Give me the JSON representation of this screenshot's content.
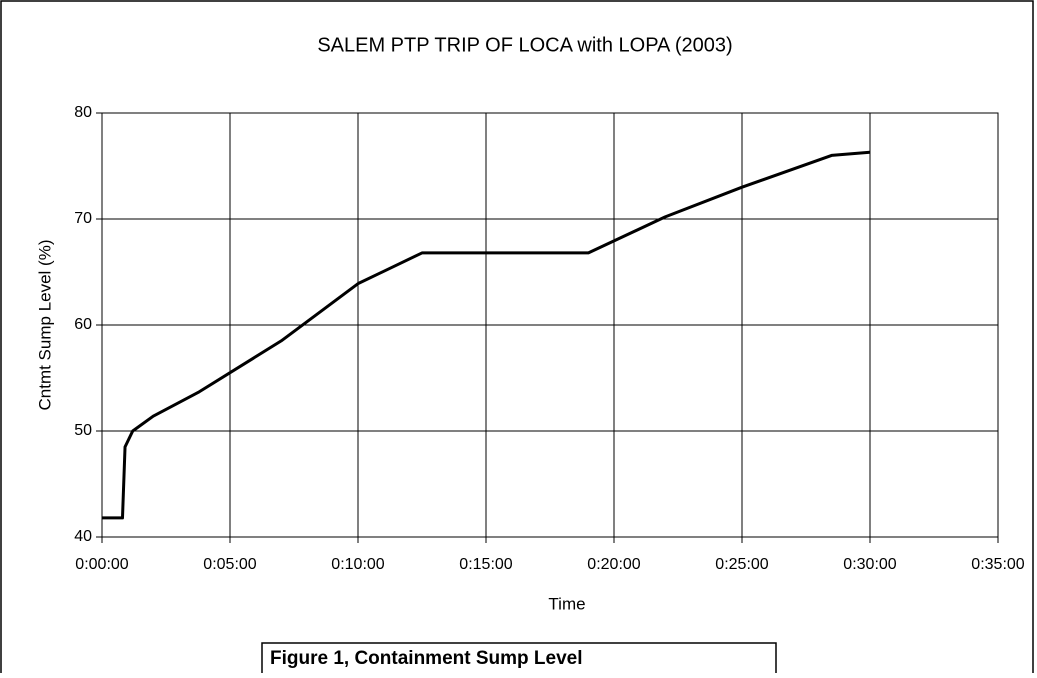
{
  "chart_data": {
    "type": "line",
    "title": "SALEM PTP TRIP OF LOCA with LOPA (2003)",
    "x_label": "Time",
    "y_label": "Cntmt Sump Level (%)",
    "caption": "Figure 1, Containment Sump Level",
    "x": [
      0,
      0.8,
      0.9,
      1.2,
      2,
      3.8,
      7,
      10,
      12.5,
      19,
      22,
      25,
      28.5,
      30
    ],
    "values": [
      41.8,
      41.8,
      48.5,
      50,
      51.4,
      53.7,
      58.5,
      63.9,
      66.8,
      66.8,
      70.2,
      73,
      76,
      76.3
    ],
    "color": "#000000",
    "xlim": [
      0,
      35
    ],
    "xticks": [
      {
        "value": 0,
        "label": "0:00:00"
      },
      {
        "value": 5,
        "label": "0:05:00"
      },
      {
        "value": 10,
        "label": "0:10:00"
      },
      {
        "value": 15,
        "label": "0:15:00"
      },
      {
        "value": 20,
        "label": "0:20:00"
      },
      {
        "value": 25,
        "label": "0:25:00"
      },
      {
        "value": 30,
        "label": "0:30:00"
      },
      {
        "value": 35,
        "label": "0:35:00"
      }
    ],
    "ylim": [
      40,
      80
    ],
    "yticks": [
      40,
      50,
      60,
      70,
      80
    ],
    "grid": true
  }
}
